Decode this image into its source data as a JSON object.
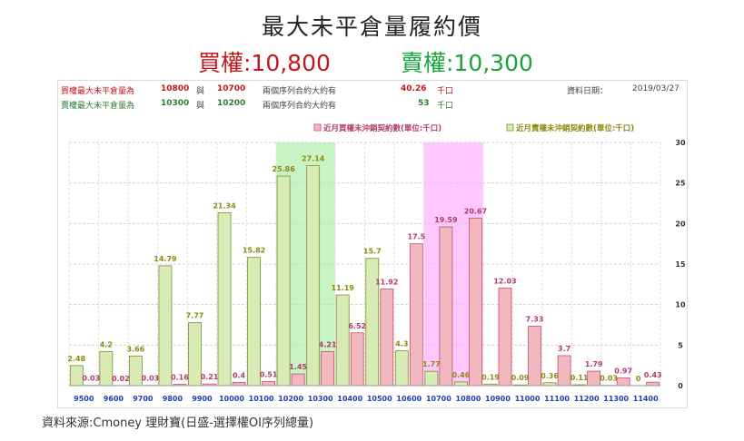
{
  "header": {
    "title": "最大未平倉量履約價",
    "call_label": "買權:10,800",
    "put_label": "賣權:10,300"
  },
  "info": {
    "row1": {
      "label": "買權最大未平倉量為",
      "strike1": "10800",
      "conj": "與",
      "strike2": "10700",
      "desc": "兩個序列合約大約有",
      "value": "40.26",
      "unit": "千口"
    },
    "row2": {
      "label": "賣權最大未平倉量為",
      "strike1": "10300",
      "conj": "與",
      "strike2": "10200",
      "desc": "兩個序列合約大約有",
      "value": "53",
      "unit": "千口"
    },
    "date_label": "資料日期：",
    "date": "2019/03/27"
  },
  "source": "資料來源:Cmoney 理財寶(日盛-選擇權OI序列總量)",
  "colors": {
    "call_bar": "#f2b8c0",
    "call_stroke": "#c44f68",
    "call_label": "#b23a6a",
    "put_bar": "#d9ebb4",
    "put_stroke": "#7a8f2f",
    "put_label": "#8a8a10",
    "call_highlight": "#ff80ff",
    "put_highlight": "#b5f0b0",
    "axis_label": "#1f3fb0"
  },
  "chart_data": {
    "type": "bar",
    "categories": [
      "9500",
      "9600",
      "9700",
      "9800",
      "9900",
      "10000",
      "10100",
      "10200",
      "10300",
      "10400",
      "10500",
      "10600",
      "10700",
      "10800",
      "10900",
      "11000",
      "11100",
      "11200",
      "11300",
      "11400"
    ],
    "series": [
      {
        "name": "近月買權未沖銷契約數(單位:千口)",
        "values": [
          0.03,
          0.02,
          0.03,
          0.16,
          0.21,
          0.4,
          0.51,
          1.45,
          4.21,
          6.52,
          11.92,
          17.5,
          19.59,
          20.67,
          12.03,
          7.33,
          3.7,
          1.79,
          0.97,
          0.43
        ]
      },
      {
        "name": "近月賣權未沖銷契約數(單位:千口)",
        "values": [
          2.48,
          4.2,
          3.66,
          14.79,
          7.77,
          21.34,
          15.82,
          25.86,
          27.14,
          11.19,
          15.7,
          4.3,
          1.77,
          0.46,
          0.19,
          0.09,
          0.36,
          0.11,
          0.03,
          0
        ]
      }
    ],
    "ylim": [
      0,
      30
    ],
    "yticks": [
      0,
      5,
      10,
      15,
      20,
      25,
      30
    ],
    "highlight_put_range": [
      "10200",
      "10300"
    ],
    "highlight_call_range": [
      "10700",
      "10800"
    ],
    "grid": true,
    "legend_position": "top"
  }
}
